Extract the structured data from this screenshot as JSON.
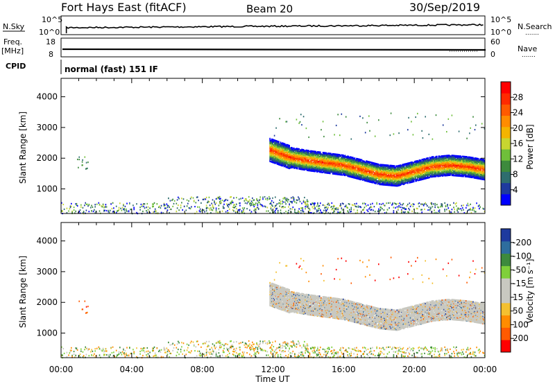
{
  "header": {
    "title": "Fort Hays East (fitACF)",
    "beam": "Beam 20",
    "date": "30/Sep/2019"
  },
  "top_panels": {
    "nsky_label": "N.Sky",
    "nsky_ticks": [
      "10^5",
      "10^0"
    ],
    "nsearch_label": "N.Search",
    "nsearch_ticks": [
      "10^5",
      "10^0"
    ],
    "freq_label": "Freq.",
    "freq_unit": "[MHz]",
    "freq_ticks": [
      "18",
      "8"
    ],
    "nave_label": "Nave",
    "nave_ticks": [
      "60",
      "0"
    ],
    "cpid_label": "CPID",
    "cpid_value": "normal (fast) 151 IF",
    "dotted_key": "......."
  },
  "colors": {
    "power_scale": [
      "#0000ff",
      "#1e3a9e",
      "#2e6d6e",
      "#3d8a3d",
      "#6fbf3a",
      "#c8d630",
      "#f4b400",
      "#ff8c00",
      "#ff5a00",
      "#ff2a00",
      "#ff0000"
    ],
    "velocity_scale": [
      "#ff0000",
      "#ff5a00",
      "#ff8c00",
      "#f4c030",
      "#c8c8c0",
      "#c8c8c0",
      "#7fcf3a",
      "#3d8a3d",
      "#2e6d9e",
      "#1e3a9e"
    ]
  },
  "chart_data": [
    {
      "type": "heatmap",
      "name": "power",
      "ylabel": "Slant Range [km]",
      "xlim": [
        0,
        24
      ],
      "ylim": [
        200,
        4600
      ],
      "yticks": [
        "1000",
        "2000",
        "3000",
        "4000"
      ],
      "colorbar_label": "Power [dB]",
      "colorbar_ticks": [
        "4",
        "8",
        "12",
        "16",
        "20",
        "24",
        "28"
      ],
      "echo_band": {
        "start_hour": 11.8,
        "end_hour": 24,
        "center_range_km": [
          [
            11.8,
            2300
          ],
          [
            13,
            2050
          ],
          [
            14,
            1950
          ],
          [
            16,
            1800
          ],
          [
            17,
            1650
          ],
          [
            18,
            1500
          ],
          [
            19,
            1450
          ],
          [
            20,
            1600
          ],
          [
            21,
            1750
          ],
          [
            22,
            1800
          ],
          [
            23,
            1750
          ],
          [
            24,
            1650
          ]
        ],
        "peak_power_db": 28
      }
    },
    {
      "type": "heatmap",
      "name": "velocity",
      "xlabel": "Time UT",
      "ylabel": "Slant Range [km]",
      "xlim": [
        0,
        24
      ],
      "ylim": [
        200,
        4600
      ],
      "xticks": [
        "00:00",
        "04:00",
        "08:00",
        "12:00",
        "16:00",
        "20:00",
        "00:00"
      ],
      "yticks": [
        "1000",
        "2000",
        "3000",
        "4000"
      ],
      "colorbar_label": "Velocity [m s⁻¹]",
      "colorbar_ticks": [
        "200",
        "100",
        "50",
        "15",
        "-15",
        "-50",
        "-100",
        "-200"
      ],
      "dominant_velocity": "ground scatter (grey, -15 to 15 m/s)"
    }
  ]
}
